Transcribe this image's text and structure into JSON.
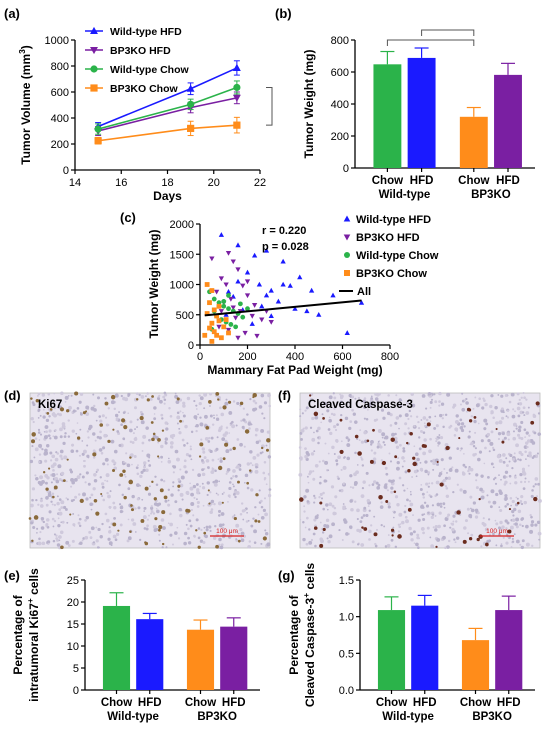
{
  "colors": {
    "wt_hfd": "#1a1aff",
    "bp3ko_hfd": "#7a1fa2",
    "wt_chow": "#2bb34a",
    "bp3ko_chow": "#ff8c1a",
    "scale_bar": "#d62020",
    "tissue_bg": "#e8e4ef"
  },
  "panels": {
    "a": {
      "label": "(a)"
    },
    "b": {
      "label": "(b)"
    },
    "c": {
      "label": "(c)"
    },
    "d": {
      "label": "(d)"
    },
    "e": {
      "label": "(e)"
    },
    "f": {
      "label": "(f)"
    },
    "g": {
      "label": "(g)"
    }
  },
  "images": {
    "d": {
      "stain": "Ki67",
      "scale_bar": "100 μm",
      "dot_color": "#8a6a3a"
    },
    "f": {
      "stain": "Cleaved Caspase-3",
      "scale_bar": "100 μm",
      "dot_color": "#6b2c1e"
    }
  },
  "chart_data": [
    {
      "panel": "a",
      "type": "line",
      "xlabel": "Days",
      "ylabel_main": "Tumor Volume (mm",
      "ylabel_sup": "3",
      "ylabel_tail": ")",
      "xlim": [
        14,
        22
      ],
      "ylim": [
        0,
        1000
      ],
      "xticks": [
        "14",
        "16",
        "18",
        "20",
        "22"
      ],
      "yticks": [
        "0",
        "200",
        "400",
        "600",
        "800",
        "1000"
      ],
      "x": [
        15,
        19,
        21
      ],
      "legend_position": "top-left",
      "series": [
        {
          "name": "Wild-type HFD",
          "marker": "triangle-up",
          "color_key": "wt_hfd",
          "values": [
            335,
            625,
            785
          ],
          "errors": [
            30,
            45,
            55
          ]
        },
        {
          "name": "BP3KO HFD",
          "marker": "triangle-down",
          "color_key": "bp3ko_hfd",
          "values": [
            300,
            480,
            555
          ],
          "errors": [
            35,
            40,
            45
          ]
        },
        {
          "name": "Wild-type Chow",
          "marker": "circle",
          "color_key": "wt_chow",
          "values": [
            315,
            505,
            635
          ],
          "errors": [
            40,
            40,
            50
          ]
        },
        {
          "name": "BP3KO Chow",
          "marker": "square",
          "color_key": "bp3ko_chow",
          "values": [
            225,
            320,
            345
          ],
          "errors": [
            25,
            55,
            60
          ]
        }
      ]
    },
    {
      "panel": "b",
      "type": "bar",
      "ylabel": "Tumor Weight (mg)",
      "ylim": [
        0,
        800
      ],
      "yticks": [
        "0",
        "200",
        "400",
        "600",
        "800"
      ],
      "bars": [
        {
          "label": "Chow",
          "value": 648,
          "error": 80,
          "color_key": "wt_chow"
        },
        {
          "label": "HFD",
          "value": 688,
          "error": 62,
          "color_key": "wt_hfd"
        },
        {
          "label": "Chow",
          "value": 320,
          "error": 58,
          "color_key": "bp3ko_chow"
        },
        {
          "label": "HFD",
          "value": 582,
          "error": 72,
          "color_key": "bp3ko_hfd"
        }
      ],
      "groups": [
        "Wild-type",
        "BP3KO"
      ]
    },
    {
      "panel": "c",
      "type": "scatter",
      "xlabel": "Mammary Fat Pad Weight (mg)",
      "ylabel": "Tumor Weight (mg)",
      "xlim": [
        0,
        800
      ],
      "ylim": [
        0,
        2000
      ],
      "xticks": [
        "0",
        "200",
        "400",
        "600",
        "800"
      ],
      "yticks": [
        "0",
        "500",
        "1000",
        "1500",
        "2000"
      ],
      "annotation_r": "r = 0.220",
      "annotation_p": "p = 0.028",
      "fit_line": {
        "name": "All",
        "x": [
          20,
          680
        ],
        "y": [
          490,
          735
        ]
      },
      "legend_position": "right",
      "series": [
        {
          "name": "Wild-type HFD",
          "marker": "triangle-up",
          "color_key": "wt_hfd",
          "points": [
            [
              90,
              1820
            ],
            [
              160,
              1650
            ],
            [
              230,
              1480
            ],
            [
              280,
              1560
            ],
            [
              350,
              1380
            ],
            [
              420,
              1120
            ],
            [
              470,
              900
            ],
            [
              560,
              820
            ],
            [
              620,
              200
            ],
            [
              680,
              700
            ],
            [
              300,
              900
            ],
            [
              250,
              1000
            ],
            [
              380,
              980
            ],
            [
              200,
              1200
            ],
            [
              140,
              800
            ],
            [
              330,
              720
            ],
            [
              260,
              640
            ],
            [
              180,
              580
            ],
            [
              110,
              500
            ],
            [
              400,
              600
            ],
            [
              450,
              560
            ],
            [
              500,
              500
            ],
            [
              300,
              480
            ],
            [
              220,
              350
            ],
            [
              160,
              1050
            ],
            [
              120,
              880
            ],
            [
              350,
              1000
            ],
            [
              280,
              820
            ]
          ]
        },
        {
          "name": "BP3KO HFD",
          "marker": "triangle-down",
          "color_key": "bp3ko_hfd",
          "points": [
            [
              50,
              1430
            ],
            [
              90,
              1100
            ],
            [
              120,
              1520
            ],
            [
              140,
              1380
            ],
            [
              160,
              1250
            ],
            [
              180,
              980
            ],
            [
              200,
              820
            ],
            [
              100,
              700
            ],
            [
              140,
              620
            ],
            [
              170,
              560
            ],
            [
              220,
              480
            ],
            [
              260,
              420
            ],
            [
              300,
              380
            ],
            [
              80,
              300
            ],
            [
              120,
              250
            ],
            [
              190,
              200
            ],
            [
              240,
              150
            ],
            [
              160,
              120
            ],
            [
              110,
              1000
            ],
            [
              70,
              880
            ],
            [
              130,
              760
            ],
            [
              230,
              660
            ],
            [
              280,
              560
            ],
            [
              200,
              1050
            ],
            [
              150,
              450
            ],
            [
              90,
              560
            ]
          ]
        },
        {
          "name": "Wild-type Chow",
          "marker": "circle",
          "color_key": "wt_chow",
          "points": [
            [
              40,
              880
            ],
            [
              60,
              760
            ],
            [
              80,
              700
            ],
            [
              100,
              640
            ],
            [
              120,
              600
            ],
            [
              140,
              560
            ],
            [
              160,
              520
            ],
            [
              70,
              480
            ],
            [
              90,
              420
            ],
            [
              110,
              380
            ],
            [
              130,
              340
            ],
            [
              150,
              300
            ],
            [
              50,
              260
            ],
            [
              80,
              640
            ],
            [
              100,
              720
            ],
            [
              120,
              820
            ],
            [
              60,
              560
            ],
            [
              180,
              460
            ],
            [
              200,
              600
            ],
            [
              170,
              680
            ]
          ]
        },
        {
          "name": "BP3KO Chow",
          "marker": "square",
          "color_key": "bp3ko_chow",
          "points": [
            [
              30,
              1000
            ],
            [
              50,
              900
            ],
            [
              40,
              700
            ],
            [
              60,
              580
            ],
            [
              70,
              480
            ],
            [
              80,
              400
            ],
            [
              50,
              360
            ],
            [
              40,
              280
            ],
            [
              60,
              220
            ],
            [
              70,
              160
            ],
            [
              90,
              120
            ],
            [
              100,
              300
            ],
            [
              110,
              420
            ],
            [
              30,
              520
            ],
            [
              80,
              640
            ],
            [
              20,
              160
            ],
            [
              50,
              60
            ],
            [
              120,
              200
            ]
          ]
        }
      ]
    },
    {
      "panel": "e",
      "type": "bar",
      "ylabel_line1": "Percentage of",
      "ylabel_line2_main": "intratumoral Ki67",
      "ylabel_line2_sup": "+",
      "ylabel_line2_tail": " cells",
      "ylim": [
        0,
        25
      ],
      "yticks": [
        "0",
        "5",
        "10",
        "15",
        "20",
        "25"
      ],
      "bars": [
        {
          "label": "Chow",
          "value": 19.1,
          "error": 3.0,
          "color_key": "wt_chow"
        },
        {
          "label": "HFD",
          "value": 16.1,
          "error": 1.3,
          "color_key": "wt_hfd"
        },
        {
          "label": "Chow",
          "value": 13.7,
          "error": 2.2,
          "color_key": "bp3ko_chow"
        },
        {
          "label": "HFD",
          "value": 14.4,
          "error": 2.0,
          "color_key": "bp3ko_hfd"
        }
      ],
      "groups": [
        "Wild-type",
        "BP3KO"
      ]
    },
    {
      "panel": "g",
      "type": "bar",
      "ylabel_line1": "Percentage of",
      "ylabel_line2_main": "Cleaved Caspase-3",
      "ylabel_line2_sup": "+",
      "ylabel_line2_tail": " cells",
      "ylim": [
        0,
        1.5
      ],
      "yticks": [
        "0.0",
        "0.5",
        "1.0",
        "1.5"
      ],
      "bars": [
        {
          "label": "Chow",
          "value": 1.09,
          "error": 0.18,
          "color_key": "wt_chow"
        },
        {
          "label": "HFD",
          "value": 1.15,
          "error": 0.14,
          "color_key": "wt_hfd"
        },
        {
          "label": "Chow",
          "value": 0.68,
          "error": 0.16,
          "color_key": "bp3ko_chow"
        },
        {
          "label": "HFD",
          "value": 1.09,
          "error": 0.19,
          "color_key": "bp3ko_hfd"
        }
      ],
      "groups": [
        "Wild-type",
        "BP3KO"
      ]
    }
  ]
}
